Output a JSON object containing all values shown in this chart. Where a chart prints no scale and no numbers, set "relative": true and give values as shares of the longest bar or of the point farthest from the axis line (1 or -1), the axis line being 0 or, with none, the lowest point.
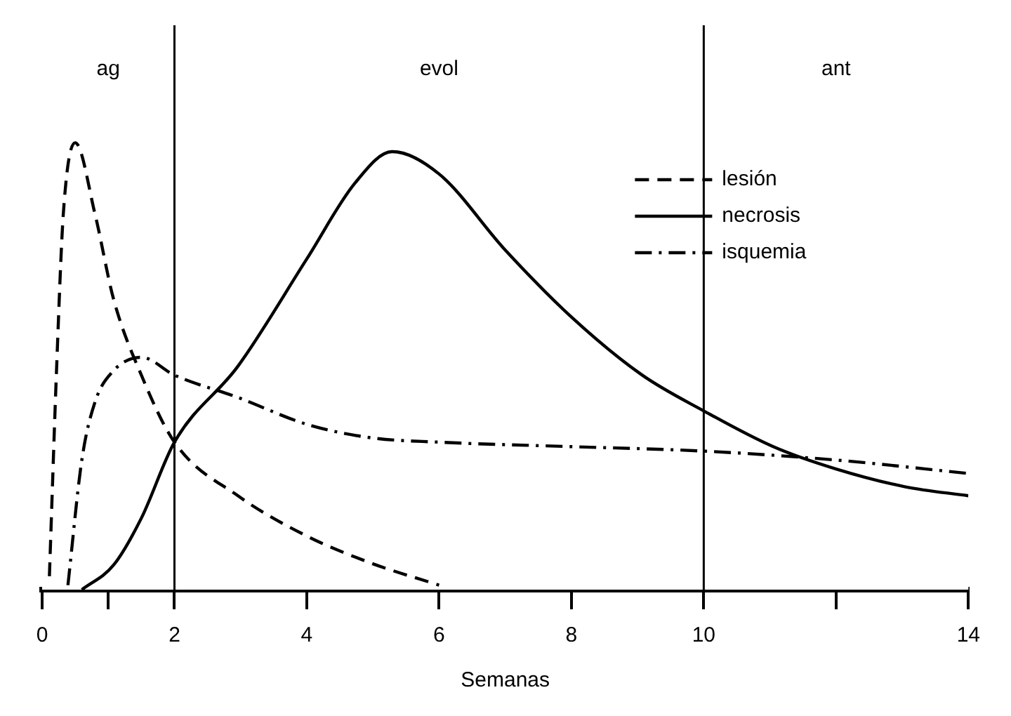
{
  "chart_data": {
    "type": "line",
    "relative": true,
    "xlabel": "Semanas",
    "xlim": [
      0,
      14
    ],
    "xticks": [
      0,
      {
        "value": 1,
        "label": null
      },
      2,
      4,
      6,
      8,
      10,
      {
        "value": 12,
        "label": null
      },
      14
    ],
    "legend": "top right",
    "grid": false,
    "marker": "none",
    "series": [
      {
        "name": "lesión",
        "color": "#000000",
        "line_style": "dashed",
        "x": [
          0.11,
          0.22,
          0.32,
          0.5,
          0.8,
          1.08,
          1.5,
          2,
          2.96,
          4,
          4.96,
          6
        ],
        "values": [
          0.03,
          0.5,
          0.84,
          1.0,
          0.84,
          0.65,
          0.48,
          0.33,
          0.21,
          0.12,
          0.06,
          0.01
        ]
      },
      {
        "name": "necrosis",
        "color": "#000000",
        "line_style": "solid",
        "x": [
          0.6,
          1.08,
          1.5,
          2,
          2.96,
          4,
          4.73,
          5.29,
          6,
          7,
          8,
          9.07,
          10,
          11.05,
          12,
          13.05,
          14
        ],
        "values": [
          0,
          0.055,
          0.16,
          0.33,
          0.5,
          0.74,
          0.91,
          0.98,
          0.93,
          0.76,
          0.61,
          0.48,
          0.4,
          0.32,
          0.27,
          0.23,
          0.21
        ]
      },
      {
        "name": "isquemia",
        "color": "#000000",
        "line_style": "dashdot",
        "x": [
          0.39,
          0.6,
          0.8,
          1.08,
          1.5,
          2,
          2.96,
          4,
          4.96,
          6,
          8,
          10,
          12,
          14
        ],
        "values": [
          0.01,
          0.29,
          0.42,
          0.49,
          0.52,
          0.48,
          0.43,
          0.37,
          0.34,
          0.33,
          0.32,
          0.31,
          0.29,
          0.26
        ]
      }
    ],
    "ref_lines": [
      {
        "axis": "x",
        "value": 2
      },
      {
        "axis": "x",
        "value": 10
      }
    ],
    "bands": [
      {
        "axis": "x",
        "from": 0,
        "to": 2,
        "label": "ag",
        "color": "#ffffff"
      },
      {
        "axis": "x",
        "from": 2,
        "to": 10,
        "label": "evol",
        "color": "#ffffff"
      },
      {
        "axis": "x",
        "from": 10,
        "to": 14,
        "label": "ant",
        "color": "#ffffff"
      }
    ]
  }
}
